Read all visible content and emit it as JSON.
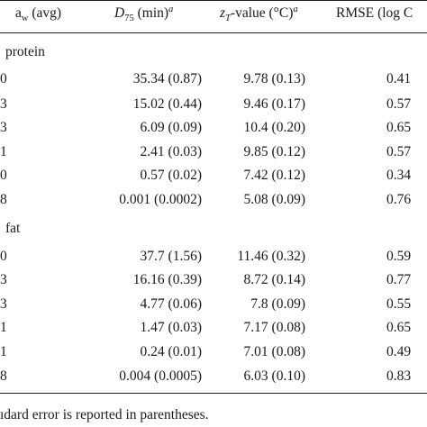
{
  "header": {
    "aw_main": "a",
    "aw_sub": "w",
    "aw_suffix": " (avg)",
    "d_main": "D",
    "d_sub": "75",
    "d_suffix": " (min)",
    "d_sup": "a",
    "z_main": "z",
    "z_sub": "T",
    "z_suffix": "-value (°C)",
    "z_sup": "a",
    "rmse": "RMSE (log C"
  },
  "sections": [
    {
      "title": "protein",
      "rows": [
        {
          "aw": "0",
          "d": "35.34 (0.87)",
          "z": "9.78 (0.13)",
          "rmse": "0.41"
        },
        {
          "aw": "3",
          "d": "15.02 (0.44)",
          "z": "9.46 (0.17)",
          "rmse": "0.57"
        },
        {
          "aw": "3",
          "d": "6.09 (0.09)",
          "z": "10.4 (0.20)",
          "rmse": "0.65"
        },
        {
          "aw": "1",
          "d": "2.41 (0.03)",
          "z": "9.85 (0.12)",
          "rmse": "0.57"
        },
        {
          "aw": "0",
          "d": "0.57 (0.02)",
          "z": "7.42 (0.12)",
          "rmse": "0.34"
        },
        {
          "aw": "8",
          "d": "0.001 (0.0002)",
          "z": "5.08 (0.09)",
          "rmse": "0.76"
        }
      ]
    },
    {
      "title": "fat",
      "rows": [
        {
          "aw": "0",
          "d": "37.7 (1.56)",
          "z": "11.46 (0.32)",
          "rmse": "0.59"
        },
        {
          "aw": "3",
          "d": "16.16 (0.39)",
          "z": "8.72 (0.14)",
          "rmse": "0.77"
        },
        {
          "aw": "3",
          "d": "4.77 (0.06)",
          "z": "7.8 (0.09)",
          "rmse": "0.55"
        },
        {
          "aw": "1",
          "d": "1.47 (0.03)",
          "z": "7.17 (0.08)",
          "rmse": "0.65"
        },
        {
          "aw": "1",
          "d": "0.24 (0.01)",
          "z": "7.01 (0.08)",
          "rmse": "0.49"
        },
        {
          "aw": "8",
          "d": "0.004 (0.0005)",
          "z": "6.03 (0.10)",
          "rmse": "0.83"
        }
      ]
    }
  ],
  "footnote": "ıdard error is reported in parentheses."
}
